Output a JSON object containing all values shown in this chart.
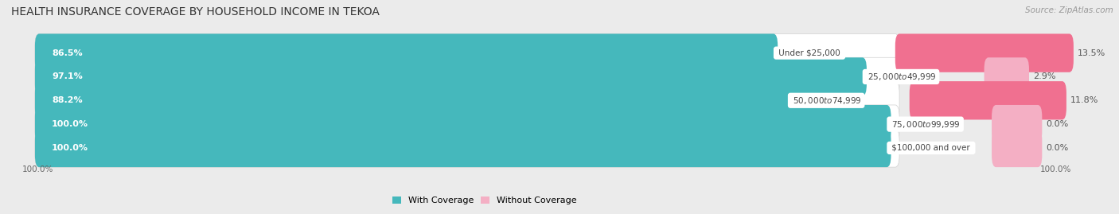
{
  "title": "HEALTH INSURANCE COVERAGE BY HOUSEHOLD INCOME IN TEKOA",
  "source": "Source: ZipAtlas.com",
  "categories": [
    "Under $25,000",
    "$25,000 to $49,999",
    "$50,000 to $74,999",
    "$75,000 to $99,999",
    "$100,000 and over"
  ],
  "with_coverage": [
    86.5,
    97.1,
    88.2,
    100.0,
    100.0
  ],
  "without_coverage": [
    13.5,
    2.9,
    11.8,
    0.0,
    0.0
  ],
  "color_with": "#45b8bc",
  "color_without": "#f07090",
  "color_without_light": "#f4afc4",
  "bg_color": "#ebebeb",
  "bar_bg_color": "#ffffff",
  "title_fontsize": 10,
  "label_fontsize": 8,
  "source_fontsize": 7.5,
  "bar_height": 0.62,
  "total_width": 100,
  "left_axis_label": "100.0%",
  "right_axis_label": "100.0%"
}
